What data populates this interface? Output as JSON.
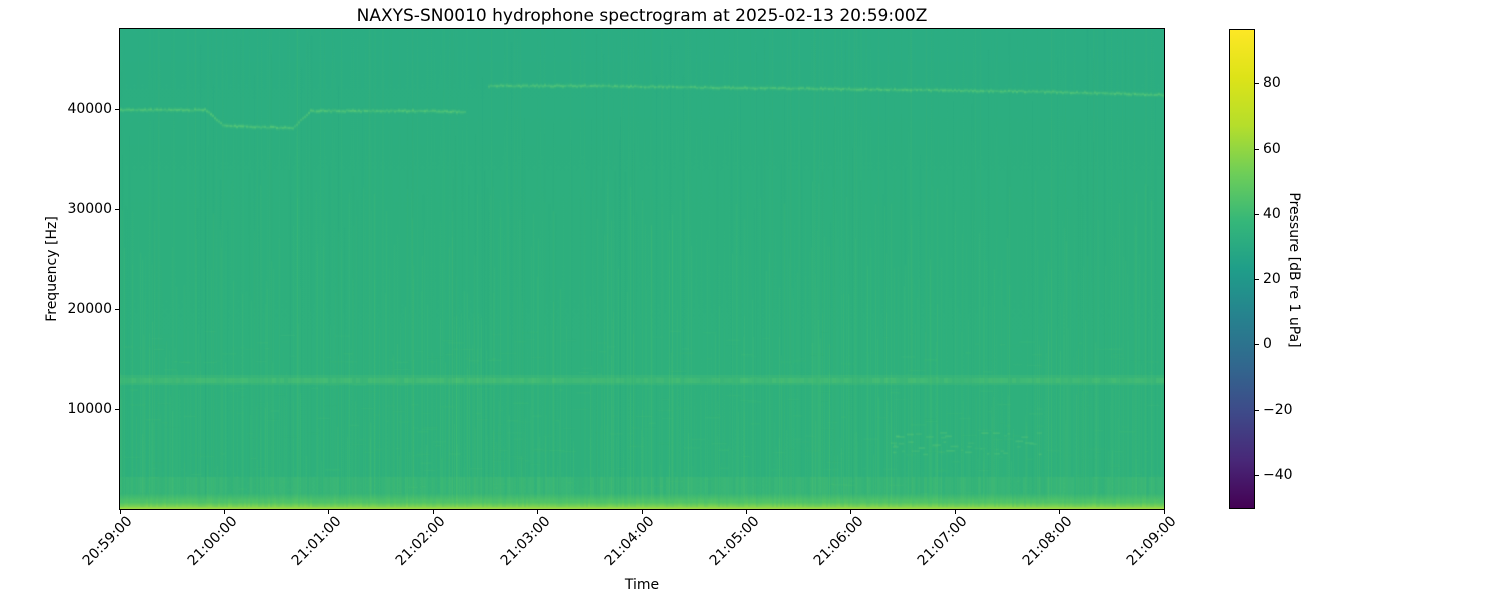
{
  "figure": {
    "title": "NAXYS-SN0010 hydrophone spectrogram at 2025-02-13 20:59:00Z",
    "xlabel": "Time",
    "ylabel": "Frequency [Hz]"
  },
  "colorbar": {
    "label": "Pressure [dB re 1 uPa]",
    "colormap": "viridis",
    "tick_values": [
      80,
      60,
      40,
      20,
      0,
      -20,
      -40
    ],
    "tick_labels": [
      "80",
      "60",
      "40",
      "20",
      "0",
      "−20",
      "−40"
    ],
    "scale_min": -50,
    "scale_max": 96.5,
    "gradient_stops": [
      "#440154",
      "#482878",
      "#3e4a89",
      "#31688e",
      "#26828e",
      "#1f9e89",
      "#35b779",
      "#6ece58",
      "#b5de2b",
      "#dde318",
      "#fde725"
    ]
  },
  "chart_data": {
    "type": "heatmap",
    "title": "NAXYS-SN0010 hydrophone spectrogram at 2025-02-13 20:59:00Z",
    "xlabel": "Time",
    "ylabel": "Frequency [Hz]",
    "x_ticklabels": [
      "20:59:00",
      "21:00:00",
      "21:01:00",
      "21:02:00",
      "21:03:00",
      "21:04:00",
      "21:05:00",
      "21:06:00",
      "21:07:00",
      "21:08:00",
      "21:09:00"
    ],
    "y_tick_values": [
      10000,
      20000,
      30000,
      40000
    ],
    "y_ticklabels": [
      "10000",
      "20000",
      "30000",
      "40000"
    ],
    "x_range": [
      "20:59:00",
      "21:09:00"
    ],
    "y_range_hz": [
      0,
      48000
    ],
    "color_scale_db": [
      -50,
      96.5
    ],
    "background_level_db": 38,
    "features": [
      {
        "name": "broadband-background",
        "freq_hz": [
          1000,
          48000
        ],
        "level_db": 38,
        "description": "near-uniform mid-green field (~35-45 dB) across the full 10 minutes"
      },
      {
        "name": "low-frequency-band",
        "freq_hz": [
          0,
          800
        ],
        "level_db": 63,
        "description": "bright yellow-green strip along the bottom edge for the full duration"
      },
      {
        "name": "elevated-band-12800Hz",
        "freq_hz": [
          12200,
          13400
        ],
        "level_db": 43,
        "description": "faint lighter horizontal band across the full duration"
      },
      {
        "name": "tonal-line-39900Hz",
        "time": [
          "20:59:00",
          "21:02:25"
        ],
        "freq_hz": [
          39900,
          38100
        ],
        "level_db": 45,
        "description": "thin tone near 39.9 kHz, dipping to ~38.1 kHz between ~20:59:55 and ~21:00:45"
      },
      {
        "name": "tonal-line-42300Hz",
        "time": [
          "21:02:30",
          "21:09:00"
        ],
        "freq_hz": [
          42300,
          41500
        ],
        "level_db": 44,
        "description": "thin wavy tone drifting slowly downward from ~42.3 kHz to ~41.5 kHz"
      },
      {
        "name": "vertical-striations",
        "freq_hz": [
          0,
          30000
        ],
        "level_db": 42,
        "description": "many faint brighter vertical streaks (broadband transients), densest below ~15 kHz"
      },
      {
        "name": "speck-cluster-6500Hz",
        "time": [
          "21:06:20",
          "21:07:30"
        ],
        "freq_hz": [
          5500,
          8000
        ],
        "level_db": 46,
        "description": "cluster of short bright dashes near 6-7 kHz"
      }
    ]
  }
}
